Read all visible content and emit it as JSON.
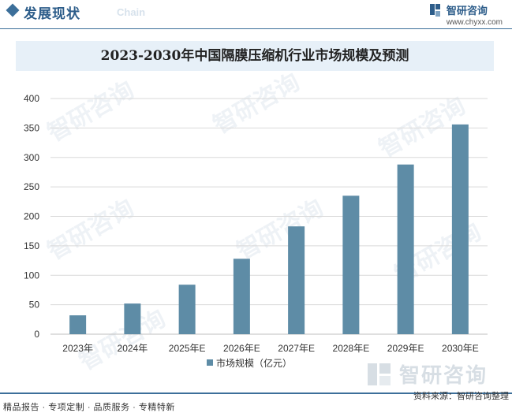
{
  "header": {
    "section_title": "发展现状",
    "section_subtitle": "Chain",
    "brand_name": "智研咨询",
    "brand_url": "www.chyxx.com"
  },
  "chart_data": {
    "type": "bar",
    "title": "2023-2030年中国隔膜压缩机行业市场规模及预测",
    "categories": [
      "2023年",
      "2024年",
      "2025年E",
      "2026年E",
      "2027年E",
      "2028年E",
      "2029年E",
      "2030年E"
    ],
    "series": [
      {
        "name": "市场规模（亿元）",
        "values": [
          32,
          52,
          84,
          128,
          183,
          235,
          288,
          356
        ]
      }
    ],
    "ylim": [
      0,
      400
    ],
    "yticks": [
      0,
      50,
      100,
      150,
      200,
      250,
      300,
      350,
      400
    ],
    "grid": true,
    "legend_position": "bottom",
    "bar_color": "#5e8ca6"
  },
  "watermark": {
    "text": "智研咨询"
  },
  "footer": {
    "left": "精品报告 · 专项定制 · 品质服务 · 专精特新",
    "right": "资料来源：智研咨询整理"
  }
}
